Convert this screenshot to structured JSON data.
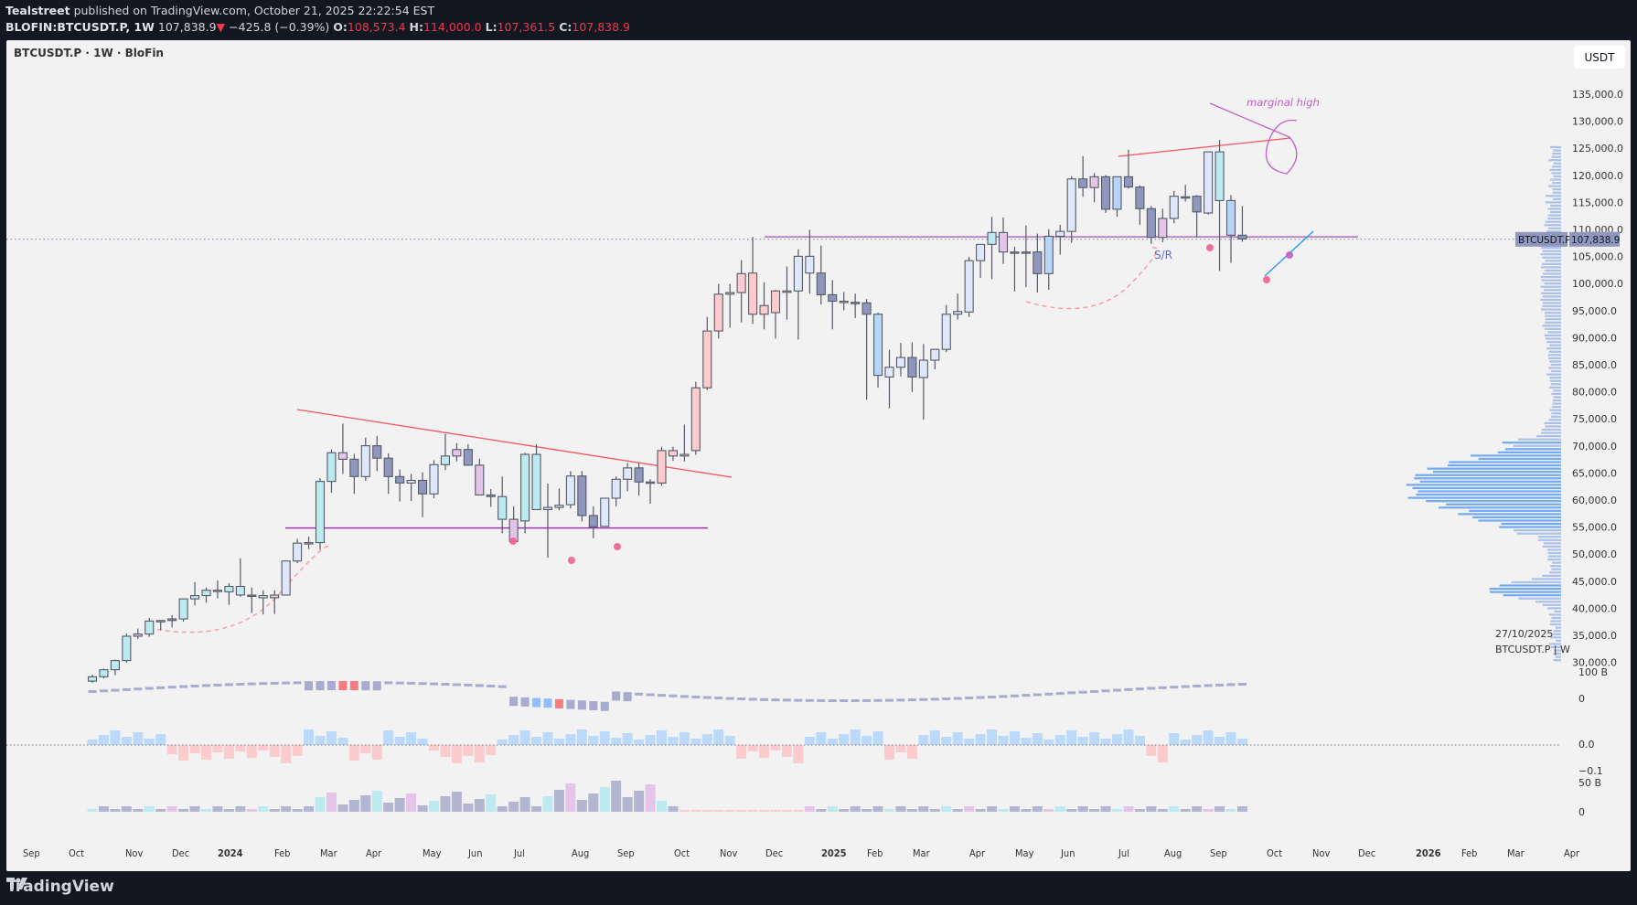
{
  "header": {
    "publisher": "Tealstreet",
    "published_text": "published on TradingView.com, October 21, 2025 22:22:54 EST",
    "symbol_line": "BLOFIN:BTCUSDT.P, 1W",
    "last_price": "107,838.9",
    "change_arrow": "▼",
    "change": "−425.8 (−0.39%)",
    "open_label": "O:",
    "open": "108,573.4",
    "high_label": "H:",
    "high": "114,000.0",
    "low_label": "L:",
    "low": "107,361.5",
    "close_label": "C:",
    "close": "107,838.9"
  },
  "chart": {
    "legend": "BTCUSDT.P · 1W · BloFin",
    "currency": "USDT",
    "price_tag_symbol": "BTCUSDT.P",
    "price_tag_value": "107,838.9",
    "profile_date": "27/10/2025",
    "profile_symbol": "BTCUSDT.P | W",
    "annotation_marginal_high": "marginal high",
    "annotation_sr": "S/R",
    "price_axis": [
      "135,000.0",
      "130,000.0",
      "125,000.0",
      "120,000.0",
      "115,000.0",
      "110,000.0",
      "105,000.0",
      "100,000.0",
      "95,000.0",
      "90,000.0",
      "85,000.0",
      "80,000.0",
      "75,000.0",
      "70,000.0",
      "65,000.0",
      "60,000.0",
      "55,000.0",
      "50,000.0",
      "45,000.0",
      "40,000.0",
      "35,000.0",
      "30,000.0"
    ],
    "indicator_axis": {
      "pane1_top": "100 B",
      "pane1_zero": "0",
      "pane2_zero": "0.0",
      "pane2_low": "−0.1",
      "pane3_top": "50 B",
      "pane3_zero": "0"
    },
    "time_axis": [
      "Sep",
      "Oct",
      "Nov",
      "Dec",
      "2024",
      "Feb",
      "Mar",
      "Apr",
      "May",
      "Jun",
      "Jul",
      "Aug",
      "Sep",
      "Oct",
      "Nov",
      "Dec",
      "2025",
      "Feb",
      "Mar",
      "Apr",
      "May",
      "Jun",
      "Jul",
      "Aug",
      "Sep",
      "Oct",
      "Nov",
      "Dec",
      "2026",
      "Feb",
      "Mar",
      "Apr"
    ],
    "time_axis_x": [
      25,
      75,
      137,
      188,
      238,
      300,
      350,
      400,
      462,
      512,
      562,
      625,
      675,
      737,
      787,
      837,
      898,
      948,
      998,
      1060,
      1110,
      1160,
      1223,
      1273,
      1323,
      1385,
      1435,
      1485,
      1548,
      1598,
      1648,
      1710
    ],
    "colors": {
      "bg": "#f2f2f2",
      "frame": "#131722",
      "red": "#f23645",
      "candle_border": "#555a66",
      "purple_line": "#9c27b0",
      "trend_red": "#f7525f",
      "sr_blue": "#5b6ee1",
      "dot_pink": "#f06292",
      "profile_blue": "#5b9cf6"
    }
  },
  "chart_data": {
    "type": "candlestick",
    "title": "BTCUSDT.P · 1W · BloFin",
    "ylabel": "USDT",
    "ylim": [
      28000,
      138000
    ],
    "candles": [
      [
        26200,
        27400,
        25900,
        27000,
        "c"
      ],
      [
        27000,
        28500,
        26700,
        28300,
        "c"
      ],
      [
        28300,
        30200,
        27300,
        30000,
        "c"
      ],
      [
        30000,
        35000,
        29600,
        34500,
        "c"
      ],
      [
        34500,
        35900,
        34000,
        34900,
        "p"
      ],
      [
        34900,
        37900,
        34400,
        37300,
        "c"
      ],
      [
        37300,
        37500,
        35600,
        37400,
        "p"
      ],
      [
        37400,
        38400,
        36100,
        37700,
        "n"
      ],
      [
        37700,
        41500,
        37200,
        41400,
        "c"
      ],
      [
        41400,
        44500,
        40200,
        42000,
        "c"
      ],
      [
        42000,
        43500,
        40700,
        43000,
        "c"
      ],
      [
        43000,
        44800,
        41500,
        42800,
        "p"
      ],
      [
        42700,
        44300,
        40300,
        43700,
        "c"
      ],
      [
        43700,
        48900,
        41800,
        42100,
        "c"
      ],
      [
        42100,
        43500,
        38800,
        42000,
        "n"
      ],
      [
        42000,
        43000,
        38500,
        41600,
        "w"
      ],
      [
        41600,
        43000,
        38600,
        42100,
        "p"
      ],
      [
        42100,
        48200,
        42000,
        48400,
        "w"
      ],
      [
        48400,
        52500,
        48000,
        51700,
        "w"
      ],
      [
        51700,
        52900,
        50600,
        51800,
        "p"
      ],
      [
        51800,
        63700,
        50500,
        63100,
        "c"
      ],
      [
        63100,
        69000,
        61000,
        68400,
        "c"
      ],
      [
        68400,
        73800,
        64500,
        67200,
        "p"
      ],
      [
        67200,
        68200,
        60800,
        64000,
        "n"
      ],
      [
        64000,
        71200,
        63200,
        69700,
        "w"
      ],
      [
        69700,
        71500,
        65000,
        67400,
        "n"
      ],
      [
        67400,
        68300,
        60800,
        64000,
        "n"
      ],
      [
        64000,
        65300,
        59400,
        62800,
        "n"
      ],
      [
        62800,
        64500,
        59500,
        63300,
        "w"
      ],
      [
        63300,
        64800,
        56500,
        60800,
        "n"
      ],
      [
        60800,
        67000,
        60000,
        66200,
        "w"
      ],
      [
        66200,
        71900,
        65200,
        67800,
        "c"
      ],
      [
        67800,
        70200,
        66800,
        69000,
        "p"
      ],
      [
        69000,
        70000,
        66200,
        66100,
        "n"
      ],
      [
        66100,
        67300,
        60500,
        60600,
        "p"
      ],
      [
        60600,
        61700,
        58400,
        60300,
        "n"
      ],
      [
        60300,
        64000,
        53500,
        56100,
        "c"
      ],
      [
        56100,
        58500,
        53700,
        52000,
        "p"
      ],
      [
        55800,
        68400,
        53500,
        68100,
        "c"
      ],
      [
        68100,
        70000,
        62300,
        57900,
        "c"
      ],
      [
        57900,
        62700,
        49000,
        58300,
        "w"
      ],
      [
        58300,
        61800,
        57800,
        58700,
        "w"
      ],
      [
        58800,
        65000,
        58100,
        64100,
        "w"
      ],
      [
        64100,
        65000,
        55700,
        56800,
        "n"
      ],
      [
        56800,
        58500,
        52600,
        54700,
        "n"
      ],
      [
        54800,
        60000,
        55000,
        60000,
        "w"
      ],
      [
        60000,
        64000,
        58500,
        63500,
        "w"
      ],
      [
        63500,
        66500,
        61300,
        65600,
        "w"
      ],
      [
        65600,
        66500,
        60500,
        63000,
        "n"
      ],
      [
        63000,
        63500,
        59000,
        63000,
        "n"
      ],
      [
        62800,
        69500,
        62300,
        68800,
        "r"
      ],
      [
        68800,
        69500,
        66900,
        67800,
        "r"
      ],
      [
        67800,
        73600,
        66800,
        68100,
        "r"
      ],
      [
        68800,
        81500,
        68000,
        80400,
        "r"
      ],
      [
        80400,
        93500,
        80000,
        90900,
        "r"
      ],
      [
        90900,
        99600,
        89500,
        97700,
        "r"
      ],
      [
        97700,
        99600,
        91500,
        98000,
        "r"
      ],
      [
        98000,
        104000,
        92500,
        101500,
        "r"
      ],
      [
        101600,
        108300,
        92200,
        94000,
        "r"
      ],
      [
        94000,
        99900,
        91200,
        95600,
        "r"
      ],
      [
        94300,
        98500,
        89500,
        98300,
        "r"
      ],
      [
        98300,
        102800,
        93000,
        98300,
        "r"
      ],
      [
        98300,
        106000,
        89300,
        104700,
        "w"
      ],
      [
        104700,
        109600,
        97800,
        101600,
        "w"
      ],
      [
        101600,
        106700,
        95800,
        97600,
        "n"
      ],
      [
        97600,
        100300,
        91200,
        96400,
        "n"
      ],
      [
        96400,
        98100,
        94700,
        96200,
        "r"
      ],
      [
        96200,
        97800,
        93300,
        96200,
        "n"
      ],
      [
        96100,
        96800,
        78200,
        94000,
        "n"
      ],
      [
        94000,
        94300,
        80400,
        82700,
        "b"
      ],
      [
        82400,
        87400,
        76600,
        84200,
        "w"
      ],
      [
        84200,
        88700,
        82500,
        86000,
        "w"
      ],
      [
        86000,
        88800,
        79600,
        82400,
        "n"
      ],
      [
        82300,
        88500,
        74500,
        85500,
        "w"
      ],
      [
        85500,
        86200,
        83800,
        87500,
        "w"
      ],
      [
        87500,
        95700,
        87000,
        94000,
        "w"
      ],
      [
        94000,
        97800,
        93000,
        94500,
        "w"
      ],
      [
        94400,
        104600,
        93500,
        103900,
        "w"
      ],
      [
        103900,
        104900,
        100700,
        106900,
        "w"
      ],
      [
        106900,
        112000,
        100500,
        109100,
        "c"
      ],
      [
        109100,
        111900,
        103300,
        105500,
        "p"
      ],
      [
        105500,
        106500,
        98200,
        105500,
        "n"
      ],
      [
        105500,
        110400,
        99000,
        105500,
        "n"
      ],
      [
        105500,
        108900,
        98000,
        101500,
        "n"
      ],
      [
        101500,
        109700,
        98500,
        108400,
        "b"
      ],
      [
        108400,
        110500,
        105000,
        109300,
        "w"
      ],
      [
        109300,
        119500,
        107200,
        119000,
        "w"
      ],
      [
        119000,
        123200,
        115700,
        117400,
        "n"
      ],
      [
        117400,
        120100,
        114700,
        119400,
        "p"
      ],
      [
        119400,
        119700,
        112700,
        113400,
        "n"
      ],
      [
        113400,
        118700,
        112000,
        119400,
        "b"
      ],
      [
        119400,
        124400,
        117200,
        117500,
        "n"
      ],
      [
        117500,
        117800,
        110500,
        113500,
        "n"
      ],
      [
        113500,
        114000,
        107000,
        108200,
        "n"
      ],
      [
        108200,
        113500,
        107300,
        111700,
        "p"
      ],
      [
        111700,
        116800,
        110800,
        115800,
        "w"
      ],
      [
        115700,
        117900,
        114800,
        115700,
        "n"
      ],
      [
        115800,
        116000,
        108200,
        112900,
        "n"
      ],
      [
        112700,
        124100,
        112400,
        124000,
        "w"
      ],
      [
        124000,
        126200,
        102000,
        115000,
        "c"
      ],
      [
        115000,
        116000,
        103500,
        108600,
        "b"
      ],
      [
        108600,
        114000,
        107400,
        107900,
        "n"
      ]
    ],
    "sr_level": 108300,
    "volume_profile_poc": 63200
  }
}
